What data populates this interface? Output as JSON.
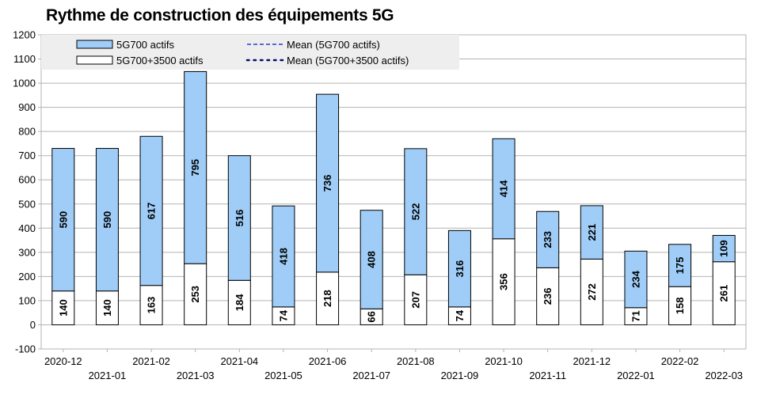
{
  "chart_data": {
    "type": "bar",
    "stacked": true,
    "title": "Rythme de construction des équipements 5G",
    "categories": [
      "2020-12",
      "2021-01",
      "2021-02",
      "2021-03",
      "2021-04",
      "2021-05",
      "2021-06",
      "2021-07",
      "2021-08",
      "2021-09",
      "2021-10",
      "2021-11",
      "2021-12",
      "2022-01",
      "2022-02",
      "2022-03"
    ],
    "series": [
      {
        "name": "5G700+3500 actifs",
        "color": "#ffffff",
        "values": [
          140,
          140,
          163,
          253,
          184,
          74,
          218,
          66,
          207,
          74,
          356,
          236,
          272,
          71,
          158,
          261
        ]
      },
      {
        "name": "5G700 actifs",
        "color": "#9fcdf7",
        "values": [
          590,
          590,
          617,
          795,
          516,
          418,
          736,
          408,
          522,
          316,
          414,
          233,
          221,
          234,
          175,
          109
        ]
      }
    ],
    "legend": {
      "placement": "top-left",
      "entries": [
        {
          "label": "5G700 actifs",
          "style": "box",
          "color": "#9fcdf7"
        },
        {
          "label": "Mean (5G700 actifs)",
          "style": "dashed",
          "color": "#2a3bd6"
        },
        {
          "label": "5G700+3500 actifs",
          "style": "box",
          "color": "#ffffff"
        },
        {
          "label": "Mean (5G700+3500 actifs)",
          "style": "dotted",
          "color": "#0a0a6e"
        }
      ]
    },
    "ylim": [
      -100,
      1200
    ],
    "yticks": [
      -100,
      0,
      100,
      200,
      300,
      400,
      500,
      600,
      700,
      800,
      900,
      1000,
      1100,
      1200
    ],
    "grid": true,
    "xlabel": "",
    "ylabel": ""
  }
}
